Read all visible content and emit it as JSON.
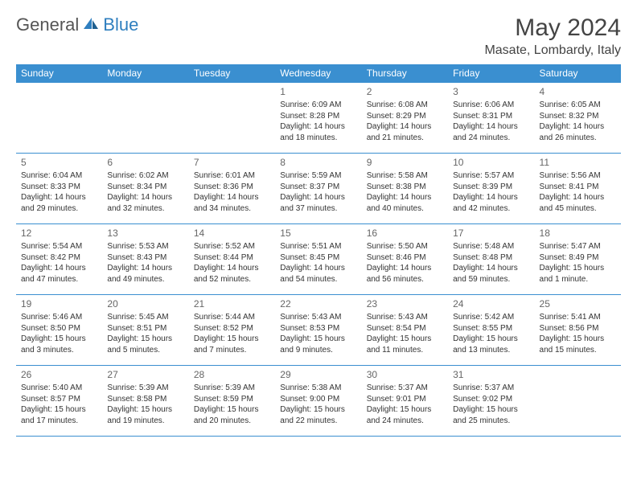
{
  "logo": {
    "part1": "General",
    "part2": "Blue"
  },
  "header": {
    "title": "May 2024",
    "location": "Masate, Lombardy, Italy"
  },
  "colors": {
    "header_bg": "#3a8fd0",
    "header_text": "#ffffff",
    "border": "#3a8fd0",
    "daynum": "#666666",
    "body_text": "#333333"
  },
  "weekdays": [
    "Sunday",
    "Monday",
    "Tuesday",
    "Wednesday",
    "Thursday",
    "Friday",
    "Saturday"
  ],
  "layout": {
    "first_weekday_index": 3,
    "days_in_month": 31
  },
  "days": {
    "1": {
      "sunrise": "6:09 AM",
      "sunset": "8:28 PM",
      "daylight": "14 hours and 18 minutes."
    },
    "2": {
      "sunrise": "6:08 AM",
      "sunset": "8:29 PM",
      "daylight": "14 hours and 21 minutes."
    },
    "3": {
      "sunrise": "6:06 AM",
      "sunset": "8:31 PM",
      "daylight": "14 hours and 24 minutes."
    },
    "4": {
      "sunrise": "6:05 AM",
      "sunset": "8:32 PM",
      "daylight": "14 hours and 26 minutes."
    },
    "5": {
      "sunrise": "6:04 AM",
      "sunset": "8:33 PM",
      "daylight": "14 hours and 29 minutes."
    },
    "6": {
      "sunrise": "6:02 AM",
      "sunset": "8:34 PM",
      "daylight": "14 hours and 32 minutes."
    },
    "7": {
      "sunrise": "6:01 AM",
      "sunset": "8:36 PM",
      "daylight": "14 hours and 34 minutes."
    },
    "8": {
      "sunrise": "5:59 AM",
      "sunset": "8:37 PM",
      "daylight": "14 hours and 37 minutes."
    },
    "9": {
      "sunrise": "5:58 AM",
      "sunset": "8:38 PM",
      "daylight": "14 hours and 40 minutes."
    },
    "10": {
      "sunrise": "5:57 AM",
      "sunset": "8:39 PM",
      "daylight": "14 hours and 42 minutes."
    },
    "11": {
      "sunrise": "5:56 AM",
      "sunset": "8:41 PM",
      "daylight": "14 hours and 45 minutes."
    },
    "12": {
      "sunrise": "5:54 AM",
      "sunset": "8:42 PM",
      "daylight": "14 hours and 47 minutes."
    },
    "13": {
      "sunrise": "5:53 AM",
      "sunset": "8:43 PM",
      "daylight": "14 hours and 49 minutes."
    },
    "14": {
      "sunrise": "5:52 AM",
      "sunset": "8:44 PM",
      "daylight": "14 hours and 52 minutes."
    },
    "15": {
      "sunrise": "5:51 AM",
      "sunset": "8:45 PM",
      "daylight": "14 hours and 54 minutes."
    },
    "16": {
      "sunrise": "5:50 AM",
      "sunset": "8:46 PM",
      "daylight": "14 hours and 56 minutes."
    },
    "17": {
      "sunrise": "5:48 AM",
      "sunset": "8:48 PM",
      "daylight": "14 hours and 59 minutes."
    },
    "18": {
      "sunrise": "5:47 AM",
      "sunset": "8:49 PM",
      "daylight": "15 hours and 1 minute."
    },
    "19": {
      "sunrise": "5:46 AM",
      "sunset": "8:50 PM",
      "daylight": "15 hours and 3 minutes."
    },
    "20": {
      "sunrise": "5:45 AM",
      "sunset": "8:51 PM",
      "daylight": "15 hours and 5 minutes."
    },
    "21": {
      "sunrise": "5:44 AM",
      "sunset": "8:52 PM",
      "daylight": "15 hours and 7 minutes."
    },
    "22": {
      "sunrise": "5:43 AM",
      "sunset": "8:53 PM",
      "daylight": "15 hours and 9 minutes."
    },
    "23": {
      "sunrise": "5:43 AM",
      "sunset": "8:54 PM",
      "daylight": "15 hours and 11 minutes."
    },
    "24": {
      "sunrise": "5:42 AM",
      "sunset": "8:55 PM",
      "daylight": "15 hours and 13 minutes."
    },
    "25": {
      "sunrise": "5:41 AM",
      "sunset": "8:56 PM",
      "daylight": "15 hours and 15 minutes."
    },
    "26": {
      "sunrise": "5:40 AM",
      "sunset": "8:57 PM",
      "daylight": "15 hours and 17 minutes."
    },
    "27": {
      "sunrise": "5:39 AM",
      "sunset": "8:58 PM",
      "daylight": "15 hours and 19 minutes."
    },
    "28": {
      "sunrise": "5:39 AM",
      "sunset": "8:59 PM",
      "daylight": "15 hours and 20 minutes."
    },
    "29": {
      "sunrise": "5:38 AM",
      "sunset": "9:00 PM",
      "daylight": "15 hours and 22 minutes."
    },
    "30": {
      "sunrise": "5:37 AM",
      "sunset": "9:01 PM",
      "daylight": "15 hours and 24 minutes."
    },
    "31": {
      "sunrise": "5:37 AM",
      "sunset": "9:02 PM",
      "daylight": "15 hours and 25 minutes."
    }
  },
  "labels": {
    "sunrise": "Sunrise:",
    "sunset": "Sunset:",
    "daylight": "Daylight:"
  }
}
